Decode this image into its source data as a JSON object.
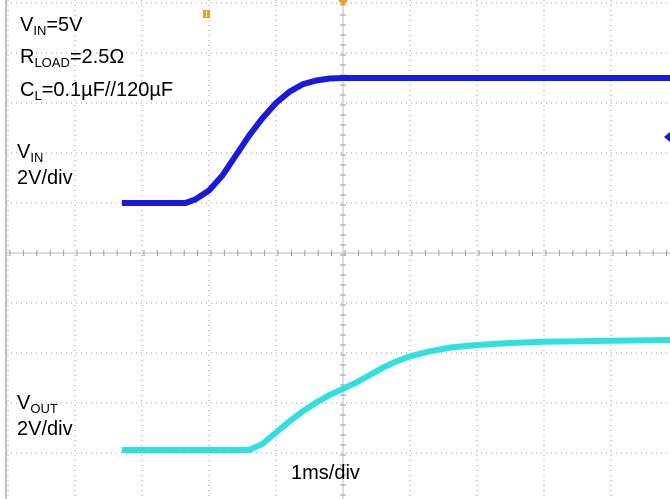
{
  "chart_data": {
    "type": "line",
    "title": "",
    "xlabel": "1ms/div",
    "ylabel": "",
    "grid": true,
    "x_unit": "ms",
    "xlim": [
      -3.3,
      5.0
    ],
    "annotations": {
      "vin_eq": {
        "sym": "V",
        "sub": "IN",
        "rest": "=5V"
      },
      "rload_eq": {
        "sym": "R",
        "sub": "LOAD",
        "rest": "=2.5Ω"
      },
      "cl_eq": {
        "sym": "C",
        "sub": "L",
        "rest": "=0.1µF//120µF"
      },
      "vin_name": {
        "sym": "V",
        "sub": "IN"
      },
      "vin_scale": "2V/div",
      "vout_name": {
        "sym": "V",
        "sub": "OUT"
      },
      "vout_scale": "2V/div",
      "timebase": "1ms/div"
    },
    "series": [
      {
        "name": "VIN",
        "color": "#1a1adc",
        "scale_v_per_div": 2,
        "x": [
          -3.3,
          -2.35,
          -2.2,
          -2.0,
          -1.8,
          -1.6,
          -1.4,
          -1.2,
          -1.0,
          -0.8,
          -0.6,
          -0.4,
          -0.2,
          0.0,
          5.0
        ],
        "y": [
          0.0,
          0.0,
          0.15,
          0.5,
          1.1,
          1.9,
          2.7,
          3.4,
          4.0,
          4.45,
          4.75,
          4.9,
          4.98,
          5.0,
          5.0
        ]
      },
      {
        "name": "VOUT",
        "color": "#30e0e0",
        "scale_v_per_div": 2,
        "x": [
          -3.3,
          -1.4,
          -1.2,
          -1.0,
          -0.8,
          -0.6,
          -0.4,
          -0.2,
          0.0,
          0.2,
          0.4,
          0.6,
          0.8,
          1.0,
          1.3,
          1.6,
          2.0,
          2.5,
          3.0,
          3.5,
          4.0,
          5.0
        ],
        "y": [
          0.0,
          0.0,
          0.25,
          0.7,
          1.15,
          1.55,
          1.9,
          2.2,
          2.45,
          2.7,
          3.0,
          3.3,
          3.55,
          3.75,
          3.95,
          4.1,
          4.2,
          4.28,
          4.33,
          4.35,
          4.37,
          4.4
        ]
      }
    ]
  },
  "markers": {
    "trigger_top_left_color": "#e8a020",
    "trigger_top_center_color": "#e8a020",
    "ch1_level_marker_color": "#1a1adc"
  }
}
